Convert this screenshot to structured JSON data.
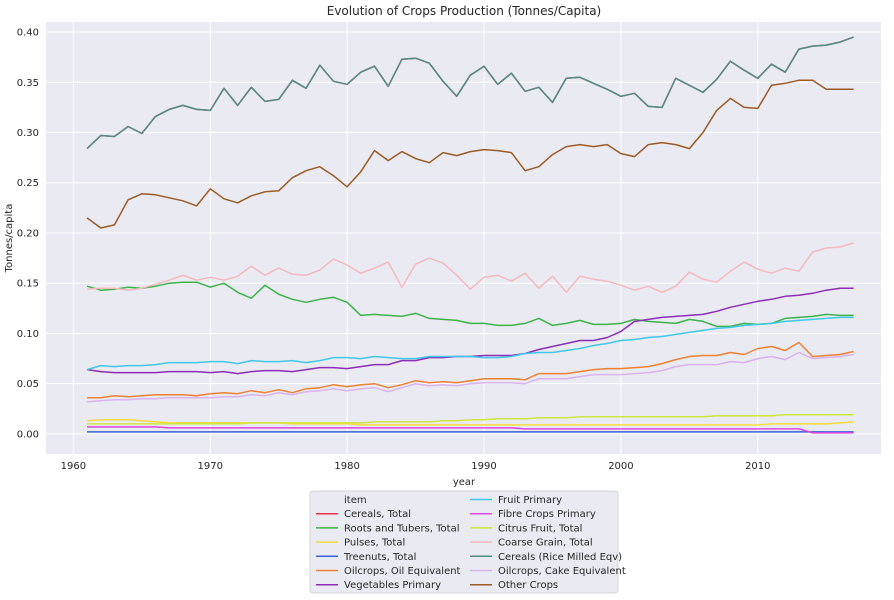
{
  "chart_data": {
    "type": "line",
    "title": "Evolution of Crops Production (Tonnes/Capita)",
    "xlabel": "year",
    "ylabel": "Tonnes/capita",
    "xlim": [
      1958,
      2019
    ],
    "ylim": [
      -0.02,
      0.41
    ],
    "x_ticks": [
      1960,
      1970,
      1980,
      1990,
      2000,
      2010
    ],
    "y_ticks": [
      0.0,
      0.05,
      0.1,
      0.15,
      0.2,
      0.25,
      0.3,
      0.35,
      0.4
    ],
    "grid": true,
    "legend_title": "item",
    "legend_position": "bottom-center",
    "x": [
      1961,
      1962,
      1963,
      1964,
      1965,
      1966,
      1967,
      1968,
      1969,
      1970,
      1971,
      1972,
      1973,
      1974,
      1975,
      1976,
      1977,
      1978,
      1979,
      1980,
      1981,
      1982,
      1983,
      1984,
      1985,
      1986,
      1987,
      1988,
      1989,
      1990,
      1991,
      1992,
      1993,
      1994,
      1995,
      1996,
      1997,
      1998,
      1999,
      2000,
      2001,
      2002,
      2003,
      2004,
      2005,
      2006,
      2007,
      2008,
      2009,
      2010,
      2011,
      2012,
      2013,
      2014,
      2015,
      2016,
      2017
    ],
    "series": [
      {
        "name": "Cereals, Total",
        "color": "#e8344a",
        "values": [
          0.284,
          0.297,
          0.296,
          0.306,
          0.299,
          0.316,
          0.323,
          0.327,
          0.323,
          0.322,
          0.344,
          0.327,
          0.345,
          0.331,
          0.333,
          0.352,
          0.344,
          0.367,
          0.351,
          0.348,
          0.36,
          0.366,
          0.346,
          0.373,
          0.374,
          0.369,
          0.351,
          0.336,
          0.357,
          0.366,
          0.348,
          0.359,
          0.341,
          0.345,
          0.33,
          0.354,
          0.355,
          0.349,
          0.343,
          0.336,
          0.339,
          0.326,
          0.325,
          0.354,
          0.347,
          0.34,
          0.353,
          0.371,
          0.362,
          0.354,
          0.368,
          0.36,
          0.383,
          0.386,
          0.387,
          0.39,
          0.395
        ]
      },
      {
        "name": "Roots and Tubers, Total",
        "color": "#3bb54a",
        "values": [
          0.147,
          0.143,
          0.144,
          0.146,
          0.145,
          0.147,
          0.15,
          0.151,
          0.151,
          0.146,
          0.15,
          0.141,
          0.135,
          0.148,
          0.139,
          0.134,
          0.131,
          0.134,
          0.136,
          0.131,
          0.118,
          0.119,
          0.118,
          0.117,
          0.12,
          0.115,
          0.114,
          0.113,
          0.11,
          0.11,
          0.108,
          0.108,
          0.11,
          0.115,
          0.108,
          0.11,
          0.113,
          0.109,
          0.109,
          0.11,
          0.114,
          0.112,
          0.111,
          0.11,
          0.114,
          0.112,
          0.107,
          0.107,
          0.11,
          0.109,
          0.11,
          0.115,
          0.116,
          0.117,
          0.119,
          0.118,
          0.118
        ]
      },
      {
        "name": "Pulses, Total",
        "color": "#f5dc3b",
        "values": [
          0.013,
          0.014,
          0.014,
          0.014,
          0.013,
          0.012,
          0.011,
          0.011,
          0.011,
          0.011,
          0.011,
          0.011,
          0.011,
          0.011,
          0.011,
          0.01,
          0.01,
          0.01,
          0.01,
          0.01,
          0.009,
          0.009,
          0.009,
          0.009,
          0.009,
          0.009,
          0.009,
          0.009,
          0.009,
          0.009,
          0.009,
          0.009,
          0.009,
          0.009,
          0.009,
          0.009,
          0.009,
          0.009,
          0.009,
          0.009,
          0.009,
          0.009,
          0.009,
          0.009,
          0.009,
          0.009,
          0.009,
          0.009,
          0.009,
          0.009,
          0.01,
          0.01,
          0.01,
          0.01,
          0.01,
          0.011,
          0.012
        ]
      },
      {
        "name": "Treenuts, Total",
        "color": "#3a62d6",
        "values": [
          0.002,
          0.002,
          0.002,
          0.002,
          0.002,
          0.002,
          0.002,
          0.002,
          0.002,
          0.002,
          0.002,
          0.002,
          0.002,
          0.002,
          0.002,
          0.002,
          0.002,
          0.002,
          0.002,
          0.002,
          0.002,
          0.002,
          0.002,
          0.002,
          0.002,
          0.002,
          0.002,
          0.002,
          0.002,
          0.002,
          0.002,
          0.002,
          0.002,
          0.002,
          0.002,
          0.002,
          0.002,
          0.002,
          0.002,
          0.002,
          0.002,
          0.002,
          0.002,
          0.002,
          0.002,
          0.002,
          0.002,
          0.002,
          0.002,
          0.002,
          0.002,
          0.002,
          0.002,
          0.002,
          0.002,
          0.002,
          0.002
        ]
      },
      {
        "name": "Oilcrops, Oil Equivalent",
        "color": "#f08132",
        "values": [
          0.036,
          0.036,
          0.038,
          0.037,
          0.038,
          0.039,
          0.039,
          0.039,
          0.038,
          0.04,
          0.041,
          0.04,
          0.043,
          0.041,
          0.044,
          0.041,
          0.045,
          0.046,
          0.049,
          0.047,
          0.049,
          0.05,
          0.046,
          0.049,
          0.053,
          0.051,
          0.052,
          0.051,
          0.053,
          0.055,
          0.055,
          0.055,
          0.054,
          0.06,
          0.06,
          0.06,
          0.062,
          0.064,
          0.065,
          0.065,
          0.066,
          0.067,
          0.07,
          0.074,
          0.077,
          0.078,
          0.078,
          0.081,
          0.079,
          0.085,
          0.087,
          0.083,
          0.091,
          0.077,
          0.078,
          0.079,
          0.082
        ]
      },
      {
        "name": "Vegetables Primary",
        "color": "#8c2dbb",
        "values": [
          0.064,
          0.062,
          0.061,
          0.061,
          0.061,
          0.061,
          0.062,
          0.062,
          0.062,
          0.061,
          0.062,
          0.06,
          0.062,
          0.063,
          0.063,
          0.062,
          0.064,
          0.066,
          0.066,
          0.065,
          0.067,
          0.069,
          0.069,
          0.073,
          0.073,
          0.076,
          0.076,
          0.077,
          0.077,
          0.078,
          0.078,
          0.078,
          0.08,
          0.084,
          0.087,
          0.09,
          0.093,
          0.093,
          0.096,
          0.102,
          0.112,
          0.114,
          0.116,
          0.117,
          0.118,
          0.119,
          0.122,
          0.126,
          0.129,
          0.132,
          0.134,
          0.137,
          0.138,
          0.14,
          0.143,
          0.145,
          0.145
        ]
      },
      {
        "name": "Fruit Primary",
        "color": "#40c8ea",
        "values": [
          0.064,
          0.068,
          0.067,
          0.068,
          0.068,
          0.069,
          0.071,
          0.071,
          0.071,
          0.072,
          0.072,
          0.07,
          0.073,
          0.072,
          0.072,
          0.073,
          0.071,
          0.073,
          0.076,
          0.076,
          0.075,
          0.077,
          0.076,
          0.075,
          0.075,
          0.077,
          0.077,
          0.077,
          0.077,
          0.076,
          0.076,
          0.077,
          0.08,
          0.081,
          0.081,
          0.083,
          0.085,
          0.088,
          0.09,
          0.093,
          0.094,
          0.096,
          0.097,
          0.099,
          0.101,
          0.103,
          0.105,
          0.106,
          0.108,
          0.109,
          0.11,
          0.112,
          0.113,
          0.114,
          0.115,
          0.116,
          0.116
        ]
      },
      {
        "name": "Fibre Crops Primary",
        "color": "#e046e0",
        "values": [
          0.007,
          0.007,
          0.007,
          0.007,
          0.007,
          0.007,
          0.006,
          0.006,
          0.006,
          0.006,
          0.006,
          0.006,
          0.006,
          0.006,
          0.006,
          0.006,
          0.006,
          0.006,
          0.006,
          0.006,
          0.006,
          0.006,
          0.006,
          0.006,
          0.006,
          0.006,
          0.006,
          0.006,
          0.006,
          0.006,
          0.006,
          0.006,
          0.005,
          0.005,
          0.005,
          0.005,
          0.005,
          0.005,
          0.005,
          0.005,
          0.005,
          0.005,
          0.005,
          0.005,
          0.005,
          0.005,
          0.005,
          0.005,
          0.005,
          0.005,
          0.005,
          0.005,
          0.005,
          0.001,
          0.001,
          0.001,
          0.001
        ]
      },
      {
        "name": "Citrus Fruit, Total",
        "color": "#cfe63e",
        "values": [
          0.01,
          0.01,
          0.01,
          0.01,
          0.01,
          0.01,
          0.01,
          0.01,
          0.01,
          0.01,
          0.01,
          0.01,
          0.011,
          0.011,
          0.011,
          0.011,
          0.011,
          0.011,
          0.011,
          0.011,
          0.011,
          0.012,
          0.012,
          0.012,
          0.012,
          0.012,
          0.013,
          0.013,
          0.014,
          0.014,
          0.015,
          0.015,
          0.015,
          0.016,
          0.016,
          0.016,
          0.017,
          0.017,
          0.017,
          0.017,
          0.017,
          0.017,
          0.017,
          0.017,
          0.017,
          0.017,
          0.018,
          0.018,
          0.018,
          0.018,
          0.018,
          0.019,
          0.019,
          0.019,
          0.019,
          0.019,
          0.019
        ]
      },
      {
        "name": "Coarse Grain, Total",
        "color": "#f7b9bd",
        "values": [
          0.144,
          0.145,
          0.145,
          0.143,
          0.145,
          0.149,
          0.153,
          0.158,
          0.153,
          0.156,
          0.153,
          0.157,
          0.167,
          0.158,
          0.165,
          0.159,
          0.158,
          0.163,
          0.174,
          0.168,
          0.16,
          0.165,
          0.171,
          0.146,
          0.169,
          0.175,
          0.17,
          0.158,
          0.144,
          0.156,
          0.158,
          0.152,
          0.16,
          0.145,
          0.157,
          0.141,
          0.157,
          0.154,
          0.152,
          0.148,
          0.143,
          0.147,
          0.141,
          0.147,
          0.161,
          0.154,
          0.151,
          0.162,
          0.171,
          0.164,
          0.16,
          0.165,
          0.162,
          0.181,
          0.185,
          0.186,
          0.19
        ]
      },
      {
        "name": "Cereals (Rice Milled Eqv)",
        "color": "#4e8f86",
        "values": [
          0.284,
          0.297,
          0.296,
          0.306,
          0.299,
          0.316,
          0.323,
          0.327,
          0.323,
          0.322,
          0.344,
          0.327,
          0.345,
          0.331,
          0.333,
          0.352,
          0.344,
          0.367,
          0.351,
          0.348,
          0.36,
          0.366,
          0.346,
          0.373,
          0.374,
          0.369,
          0.351,
          0.336,
          0.357,
          0.366,
          0.348,
          0.359,
          0.341,
          0.345,
          0.33,
          0.354,
          0.355,
          0.349,
          0.343,
          0.336,
          0.339,
          0.326,
          0.325,
          0.354,
          0.347,
          0.34,
          0.353,
          0.371,
          0.362,
          0.354,
          0.368,
          0.36,
          0.383,
          0.386,
          0.387,
          0.39,
          0.395
        ]
      },
      {
        "name": "Oilcrops, Cake Equivalent",
        "color": "#d9b2ef",
        "values": [
          0.032,
          0.033,
          0.034,
          0.034,
          0.035,
          0.035,
          0.036,
          0.036,
          0.036,
          0.036,
          0.037,
          0.037,
          0.039,
          0.038,
          0.041,
          0.039,
          0.042,
          0.043,
          0.045,
          0.043,
          0.045,
          0.046,
          0.042,
          0.046,
          0.05,
          0.048,
          0.049,
          0.048,
          0.05,
          0.051,
          0.051,
          0.051,
          0.05,
          0.055,
          0.055,
          0.055,
          0.057,
          0.059,
          0.059,
          0.059,
          0.06,
          0.061,
          0.063,
          0.067,
          0.069,
          0.069,
          0.069,
          0.072,
          0.071,
          0.075,
          0.077,
          0.074,
          0.081,
          0.075,
          0.076,
          0.077,
          0.079
        ]
      },
      {
        "name": "Other Crops",
        "color": "#9c5b26",
        "values": [
          0.215,
          0.205,
          0.208,
          0.233,
          0.239,
          0.238,
          0.235,
          0.232,
          0.227,
          0.244,
          0.234,
          0.23,
          0.237,
          0.241,
          0.242,
          0.255,
          0.262,
          0.266,
          0.257,
          0.246,
          0.261,
          0.282,
          0.272,
          0.281,
          0.274,
          0.27,
          0.28,
          0.277,
          0.281,
          0.283,
          0.282,
          0.28,
          0.262,
          0.266,
          0.278,
          0.286,
          0.288,
          0.286,
          0.288,
          0.279,
          0.276,
          0.288,
          0.29,
          0.288,
          0.284,
          0.3,
          0.322,
          0.334,
          0.325,
          0.324,
          0.347,
          0.349,
          0.352,
          0.352,
          0.343,
          0.343,
          0.343
        ]
      }
    ]
  }
}
